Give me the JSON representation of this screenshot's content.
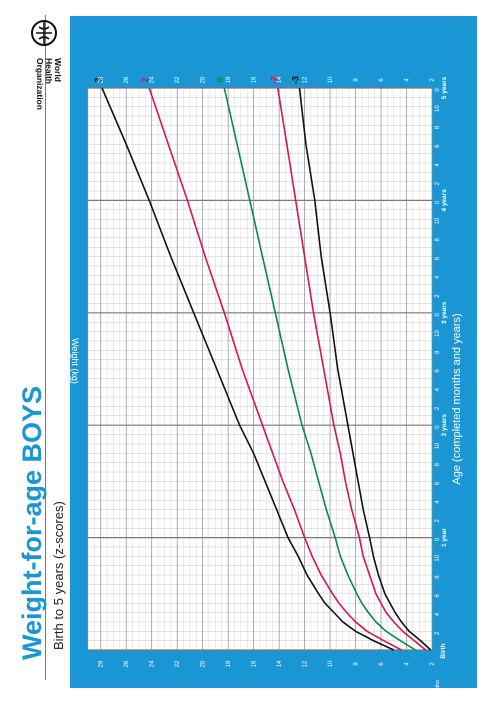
{
  "header": {
    "title": "Weight-for-age BOYS",
    "subtitle": "Birth to 5 years (z-scores)",
    "organization": "World Health Organization",
    "logo_icon": "who-emblem-icon"
  },
  "colors": {
    "frame": "#1a96d4",
    "z3": "#111111",
    "z2": "#d4145a",
    "z0": "#0a8a3c",
    "grid": "#bdbdbd"
  },
  "chart_data": {
    "type": "line",
    "xlabel": "Age (completed months and years)",
    "ylabel": "Weight (kg)",
    "xlim": [
      0,
      60
    ],
    "ylim": [
      2,
      29
    ],
    "grid": true,
    "months_label": "Months",
    "birth_label": "Birth",
    "year_labels": [
      {
        "month": 12,
        "label": "1 year"
      },
      {
        "month": 24,
        "label": "2 years"
      },
      {
        "month": 36,
        "label": "3 years"
      },
      {
        "month": 48,
        "label": "4 years"
      },
      {
        "month": 60,
        "label": "5 years"
      }
    ],
    "month_ticks": [
      2,
      4,
      6,
      8,
      10,
      2,
      4,
      6,
      8,
      10,
      2,
      4,
      6,
      8,
      10,
      2,
      4,
      6,
      8,
      10,
      2,
      4,
      6,
      8,
      10
    ],
    "y_ticks": [
      2,
      4,
      6,
      8,
      10,
      12,
      14,
      16,
      18,
      20,
      22,
      24,
      26,
      28
    ],
    "x": [
      0,
      1,
      2,
      3,
      4,
      5,
      6,
      8,
      10,
      12,
      15,
      18,
      21,
      24,
      30,
      36,
      42,
      48,
      54,
      60
    ],
    "series": [
      {
        "name": "3",
        "color": "#111111",
        "values": [
          5.0,
          6.6,
          8.0,
          9.0,
          9.7,
          10.4,
          10.9,
          11.8,
          12.5,
          13.3,
          14.2,
          15.1,
          16.0,
          17.1,
          18.9,
          20.7,
          22.5,
          24.2,
          26.0,
          27.9
        ]
      },
      {
        "name": "2",
        "color": "#d4145a",
        "values": [
          4.4,
          5.8,
          7.1,
          8.0,
          8.7,
          9.3,
          9.8,
          10.7,
          11.4,
          12.0,
          12.8,
          13.7,
          14.5,
          15.3,
          16.9,
          18.3,
          19.8,
          21.2,
          22.7,
          24.2
        ]
      },
      {
        "name": "0",
        "color": "#0a8a3c",
        "values": [
          3.3,
          4.5,
          5.6,
          6.4,
          7.0,
          7.5,
          7.9,
          8.6,
          9.2,
          9.6,
          10.3,
          10.9,
          11.5,
          12.2,
          13.3,
          14.3,
          15.3,
          16.3,
          17.3,
          18.3
        ]
      },
      {
        "name": "-2",
        "color": "#d4145a",
        "values": [
          2.5,
          3.4,
          4.3,
          5.0,
          5.6,
          6.0,
          6.4,
          6.9,
          7.4,
          7.7,
          8.3,
          8.8,
          9.2,
          9.7,
          10.5,
          11.3,
          12.0,
          12.7,
          13.4,
          14.1
        ]
      },
      {
        "name": "-3",
        "color": "#111111",
        "values": [
          2.1,
          2.9,
          3.8,
          4.4,
          4.9,
          5.3,
          5.7,
          6.2,
          6.6,
          6.9,
          7.4,
          7.8,
          8.2,
          8.6,
          9.4,
          10.0,
          10.7,
          11.2,
          11.9,
          12.4
        ]
      }
    ]
  }
}
